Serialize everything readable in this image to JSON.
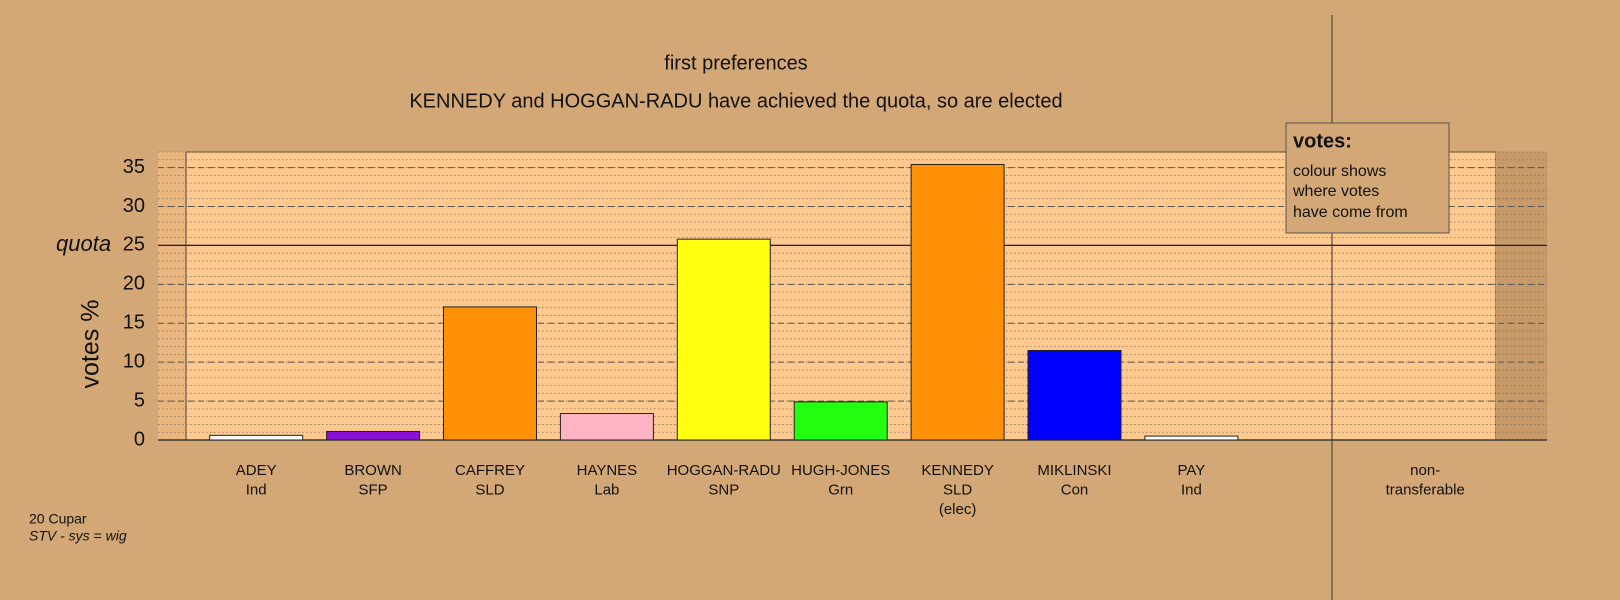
{
  "chart_data": {
    "type": "bar",
    "title": "first preferences",
    "subtitle": "KENNEDY and HOGGAN-RADU have achieved the quota, so are elected",
    "y_label": "votes %",
    "categories": [
      [
        "ADEY",
        "Ind"
      ],
      [
        "BROWN",
        "SFP"
      ],
      [
        "CAFFREY",
        "SLD"
      ],
      [
        "HAYNES",
        "Lab"
      ],
      [
        "HOGGAN-RADU",
        "SNP"
      ],
      [
        "HUGH-JONES",
        "Grn"
      ],
      [
        "KENNEDY",
        "SLD",
        "(elec)"
      ],
      [
        "MIKLINSKI",
        "Con"
      ],
      [
        "PAY",
        "Ind"
      ],
      null,
      [
        "non-",
        "transferable"
      ]
    ],
    "values": [
      0.6,
      1.1,
      17.1,
      3.4,
      25.8,
      4.9,
      35.4,
      11.5,
      0.5,
      null,
      null
    ],
    "colors": [
      "#ffffff",
      "#8a10d8",
      "#ff9108",
      "#ffb4c6",
      "#ffff10",
      "#22ff10",
      "#ff9108",
      "#0000ff",
      "#ffffff",
      null,
      null
    ],
    "ylim": [
      0,
      37
    ],
    "yticks": [
      0,
      5,
      10,
      15,
      20,
      25,
      30,
      35
    ],
    "grid": true,
    "minor_grid_step": 1,
    "quota_line": {
      "value": 25,
      "label": "quota"
    },
    "legend": {
      "title": "votes:",
      "lines": [
        "colour shows",
        "where votes",
        "have come from"
      ]
    },
    "footer": {
      "area": "20 Cupar",
      "system": "STV - sys = wig"
    }
  }
}
